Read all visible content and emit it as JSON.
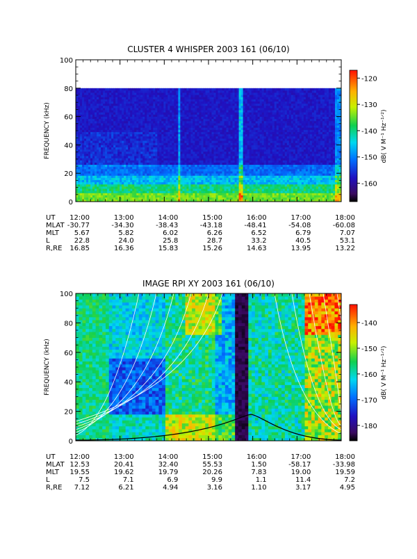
{
  "chart_data": [
    {
      "type": "heatmap",
      "title": "CLUSTER 4 WHISPER 2003 161 (06/10)",
      "ylabel": "FREQUENCY (kHz)",
      "ylim": [
        0,
        100
      ],
      "yticks": [
        "0",
        "20",
        "40",
        "60",
        "80",
        "100"
      ],
      "xlim": [
        "12:00",
        "18:00"
      ],
      "xticks": [
        "12:00",
        "13:00",
        "14:00",
        "15:00",
        "16:00",
        "17:00",
        "18:00"
      ],
      "data_upper_frequency_khz": 80,
      "colorbar": {
        "label": "dB( V M⁻¹ Hz⁻¹ᐟ²)",
        "range": [
          -167,
          -117
        ],
        "ticks": [
          "-120",
          "-130",
          "-140",
          "-150",
          "-160"
        ]
      },
      "ephemeris": {
        "labels": [
          "UT",
          "MLAT",
          "MLT",
          "L",
          "R,RE"
        ],
        "columns": [
          [
            "12:00",
            "-30.77",
            "5.67",
            "22.8",
            "16.85"
          ],
          [
            "13:00",
            "-34.30",
            "5.82",
            "24.0",
            "16.36"
          ],
          [
            "14:00",
            "-38.43",
            "6.02",
            "25.8",
            "15.83"
          ],
          [
            "15:00",
            "-43.18",
            "6.26",
            "28.7",
            "15.26"
          ],
          [
            "16:00",
            "-48.41",
            "6.52",
            "33.2",
            "14.63"
          ],
          [
            "17:00",
            "-54.08",
            "6.79",
            "40.5",
            "13.95"
          ],
          [
            "18:00",
            "-60.08",
            "7.07",
            "53.1",
            "13.22"
          ]
        ]
      }
    },
    {
      "type": "heatmap",
      "title": "IMAGE RPI XY 2003 161 (06/10)",
      "ylabel": "FREQUENCY (kHz)",
      "ylim": [
        0,
        100
      ],
      "yticks": [
        "0",
        "20",
        "40",
        "60",
        "80",
        "100"
      ],
      "xlim": [
        "12:00",
        "18:00"
      ],
      "xticks": [
        "12:00",
        "13:00",
        "14:00",
        "15:00",
        "16:00",
        "17:00",
        "18:00"
      ],
      "colorbar": {
        "label": "dB( V M⁻¹ Hz⁻¹ᐟ²)",
        "range": [
          -186,
          -133
        ],
        "ticks": [
          "-140",
          "-150",
          "-160",
          "-170",
          "-180"
        ]
      },
      "ephemeris": {
        "labels": [
          "UT",
          "MLAT",
          "MLT",
          "L",
          "R,RE"
        ],
        "columns": [
          [
            "12:00",
            "12.53",
            "19.55",
            "7.5",
            "7.12"
          ],
          [
            "13:00",
            "20.41",
            "19.62",
            "7.1",
            "6.21"
          ],
          [
            "14:00",
            "32.40",
            "19.79",
            "6.9",
            "4.94"
          ],
          [
            "15:00",
            "55.53",
            "20.26",
            "9.9",
            "3.16"
          ],
          [
            "16:00",
            "1.50",
            "7.83",
            "1.1",
            "1.10"
          ],
          [
            "17:00",
            "-58.17",
            "19.00",
            "11.4",
            "3.17"
          ],
          [
            "18:00",
            "-33.98",
            "19.59",
            "7.2",
            "4.95"
          ]
        ]
      }
    }
  ]
}
